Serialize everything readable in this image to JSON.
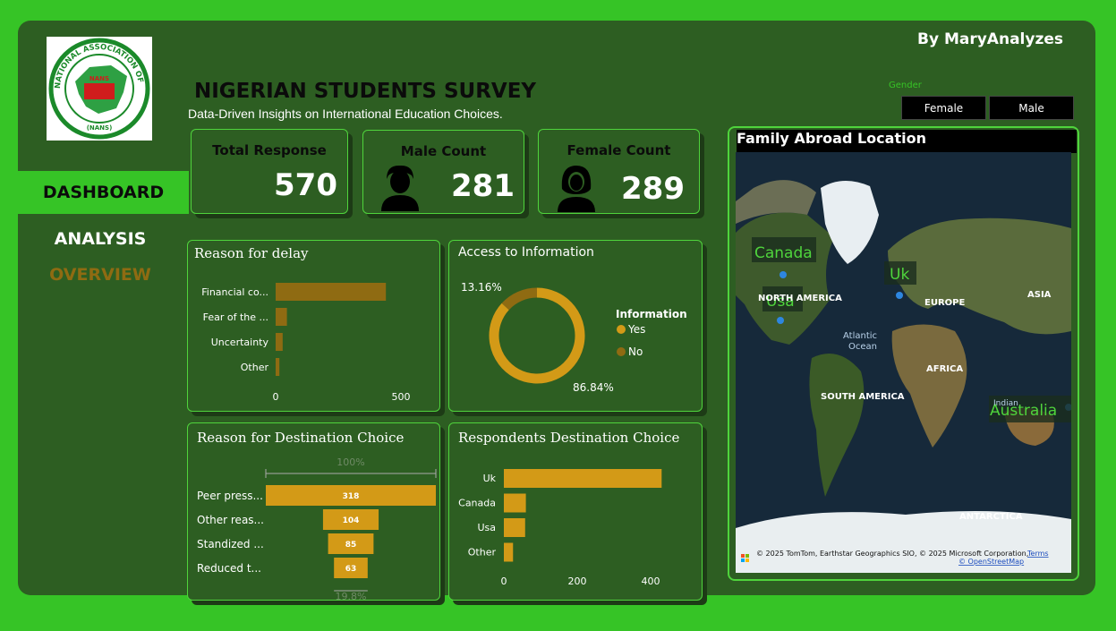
{
  "header": {
    "byline": "By MaryAnalyzes",
    "title": "NIGERIAN STUDENTS SURVEY",
    "subtitle": "Data-Driven Insights on International Education Choices."
  },
  "logo": {
    "ring_text": "NATIONAL ASSOCIATION OF NIGERIAN STUDENTS",
    "badge": "NANS",
    "bottom": "(NANS)"
  },
  "nav": {
    "items": [
      "DASHBOARD",
      "ANALYSIS",
      "OVERVIEW"
    ],
    "active": "DASHBOARD"
  },
  "slicer": {
    "label": "Gender",
    "options": [
      "Female",
      "Male"
    ]
  },
  "kpis": {
    "total": {
      "label": "Total Response",
      "value": "570"
    },
    "male": {
      "label": "Male Count",
      "value": "281"
    },
    "female": {
      "label": "Female Count",
      "value": "289"
    }
  },
  "colors": {
    "accent": "#36c426",
    "panel": "#2d5e22",
    "gold": "#d39a17",
    "brown": "#8f6b12"
  },
  "chart_data": [
    {
      "type": "bar",
      "title": "Reason for delay",
      "categories": [
        "Financial co...",
        "Fear of the ...",
        "Uncertainty",
        "Other"
      ],
      "values": [
        440,
        45,
        28,
        15
      ],
      "xlim": [
        0,
        600
      ],
      "xticks": [
        "0",
        "500"
      ]
    },
    {
      "type": "pie",
      "title": "Access to Information",
      "legend_title": "Information",
      "labels": [
        "Yes",
        "No"
      ],
      "values": [
        86.84,
        13.16
      ],
      "value_labels": [
        "86.84%",
        "13.16%"
      ]
    },
    {
      "type": "bar",
      "title": "Reason for Destination Choice",
      "categories": [
        "Peer press...",
        "Other reas...",
        "Standized ...",
        "Reduced t..."
      ],
      "values": [
        318,
        104,
        85,
        63
      ],
      "top_label": "100%",
      "bottom_label": "19.8%"
    },
    {
      "type": "bar",
      "title": "Respondents Destination Choice",
      "categories": [
        "Uk",
        "Canada",
        "Usa",
        "Other"
      ],
      "values": [
        430,
        60,
        58,
        25
      ],
      "xlim": [
        0,
        480
      ],
      "xticks": [
        "0",
        "200",
        "400"
      ]
    }
  ],
  "map": {
    "title": "Family Abroad Location",
    "markers": [
      "Canada",
      "Uk",
      "Usa",
      "Australia"
    ],
    "regions": [
      "NORTH AMERICA",
      "EUROPE",
      "ASIA",
      "Atlantic",
      "Ocean",
      "AFRICA",
      "SOUTH AMERICA",
      "Indian",
      "ANTARCTICA"
    ],
    "attribution": "© 2025 TomTom, Earthstar Geographics SIO, © 2025 Microsoft Corporation,",
    "terms": "Terms",
    "osm": "© OpenStreetMap"
  }
}
